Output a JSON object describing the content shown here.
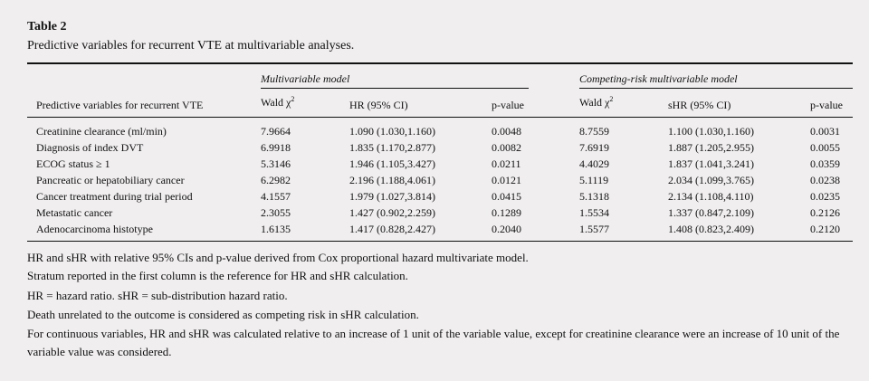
{
  "table": {
    "label": "Table 2",
    "caption": "Predictive variables for recurrent VTE at multivariable analyses.",
    "groups": {
      "multivariable": "Multivariable model",
      "competing": "Competing-risk multivariable model"
    },
    "columns": {
      "variable": "Predictive variables for recurrent VTE",
      "wald_mv": "Wald χ",
      "hr": "HR (95% CI)",
      "p_mv": "p-value",
      "wald_cr": "Wald χ",
      "shr": "sHR (95% CI)",
      "p_cr": "p-value",
      "wald_sup": "2"
    },
    "rows": [
      {
        "variable": "Creatinine clearance (ml/min)",
        "wald_mv": "7.9664",
        "hr": "1.090 (1.030,1.160)",
        "p_mv": "0.0048",
        "wald_cr": "8.7559",
        "shr": "1.100 (1.030,1.160)",
        "p_cr": "0.0031"
      },
      {
        "variable": "Diagnosis of index DVT",
        "wald_mv": "6.9918",
        "hr": "1.835 (1.170,2.877)",
        "p_mv": "0.0082",
        "wald_cr": "7.6919",
        "shr": "1.887 (1.205,2.955)",
        "p_cr": "0.0055"
      },
      {
        "variable": "ECOG status ≥ 1",
        "wald_mv": "5.3146",
        "hr": "1.946 (1.105,3.427)",
        "p_mv": "0.0211",
        "wald_cr": "4.4029",
        "shr": "1.837 (1.041,3.241)",
        "p_cr": "0.0359"
      },
      {
        "variable": "Pancreatic or hepatobiliary cancer",
        "wald_mv": "6.2982",
        "hr": "2.196 (1.188,4.061)",
        "p_mv": "0.0121",
        "wald_cr": "5.1119",
        "shr": "2.034 (1.099,3.765)",
        "p_cr": "0.0238"
      },
      {
        "variable": "Cancer treatment during trial period",
        "wald_mv": "4.1557",
        "hr": "1.979 (1.027,3.814)",
        "p_mv": "0.0415",
        "wald_cr": "5.1318",
        "shr": "2.134 (1.108,4.110)",
        "p_cr": "0.0235"
      },
      {
        "variable": "Metastatic cancer",
        "wald_mv": "2.3055",
        "hr": "1.427 (0.902,2.259)",
        "p_mv": "0.1289",
        "wald_cr": "1.5534",
        "shr": "1.337 (0.847,2.109)",
        "p_cr": "0.2126"
      },
      {
        "variable": "Adenocarcinoma histotype",
        "wald_mv": "1.6135",
        "hr": "1.417 (0.828,2.427)",
        "p_mv": "0.2040",
        "wald_cr": "1.5577",
        "shr": "1.408 (0.823,2.409)",
        "p_cr": "0.2120"
      }
    ]
  },
  "notes": [
    "HR and sHR with relative 95% CIs and p-value derived from Cox proportional hazard multivariate model.",
    "Stratum reported in the first column is the reference for HR and sHR calculation.",
    "HR = hazard ratio. sHR = sub-distribution hazard ratio.",
    "Death unrelated to the outcome is considered as competing risk in sHR calculation.",
    "For continuous variables, HR and sHR was calculated relative to an increase of 1 unit of the variable value, except for creatinine clearance were an increase of 10 unit of the variable value was considered."
  ]
}
